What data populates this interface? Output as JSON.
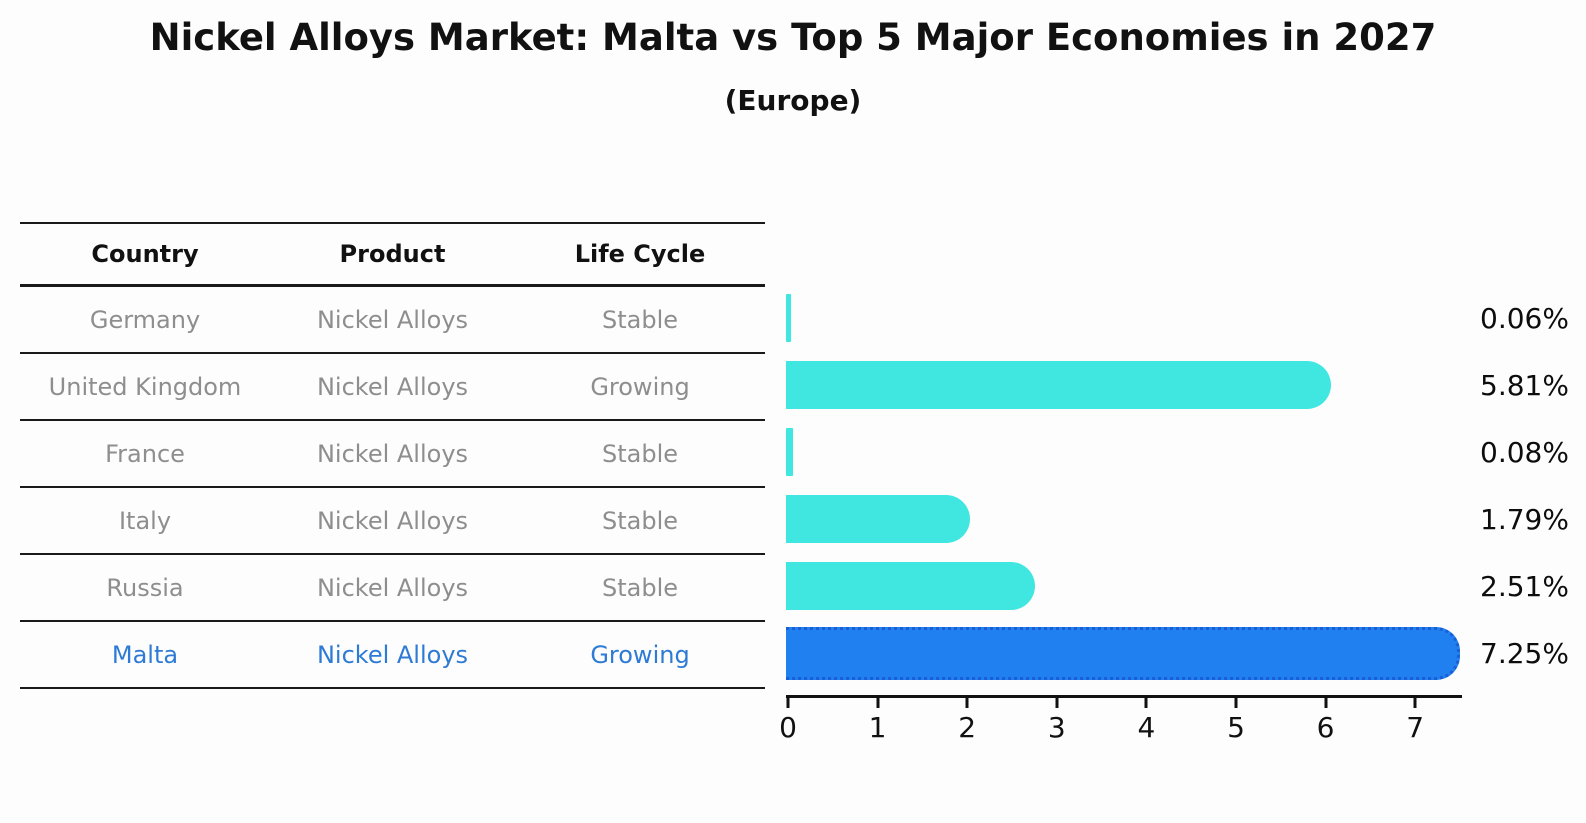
{
  "title": "Nickel Alloys Market: Malta vs Top 5 Major Economies in 2027",
  "subtitle": "(Europe)",
  "table": {
    "headers": [
      "Country",
      "Product",
      "Life Cycle"
    ],
    "rows": [
      {
        "country": "Germany",
        "product": "Nickel Alloys",
        "life_cycle": "Stable",
        "highlight": false
      },
      {
        "country": "United Kingdom",
        "product": "Nickel Alloys",
        "life_cycle": "Growing",
        "highlight": false
      },
      {
        "country": "France",
        "product": "Nickel Alloys",
        "life_cycle": "Stable",
        "highlight": false
      },
      {
        "country": "Italy",
        "product": "Nickel Alloys",
        "life_cycle": "Stable",
        "highlight": false
      },
      {
        "country": "Russia",
        "product": "Nickel Alloys",
        "life_cycle": "Stable",
        "highlight": false
      },
      {
        "country": "Malta",
        "product": "Nickel Alloys",
        "life_cycle": "Growing",
        "highlight": true
      }
    ]
  },
  "chart_data": {
    "type": "bar",
    "orientation": "horizontal",
    "title": "Nickel Alloys Market: Malta vs Top 5 Major Economies in 2027",
    "subtitle": "(Europe)",
    "categories": [
      "Germany",
      "United Kingdom",
      "France",
      "Italy",
      "Russia",
      "Malta"
    ],
    "values": [
      0.06,
      5.81,
      0.08,
      1.79,
      2.51,
      7.25
    ],
    "value_labels": [
      "0.06%",
      "5.81%",
      "0.08%",
      "1.79%",
      "2.51%",
      "7.25%"
    ],
    "x_ticks": [
      0,
      1,
      2,
      3,
      4,
      5,
      6,
      7
    ],
    "xlim": [
      0,
      7.55
    ],
    "grid": false,
    "legend": false,
    "highlight_index": 5,
    "bar_color": "#3fe7e0",
    "highlight_bar_color": "#2080f0",
    "highlight_border_color": "#1a5ed6",
    "row_text_color": "#8e8e8e",
    "highlight_text_color": "#2d7bd4"
  }
}
